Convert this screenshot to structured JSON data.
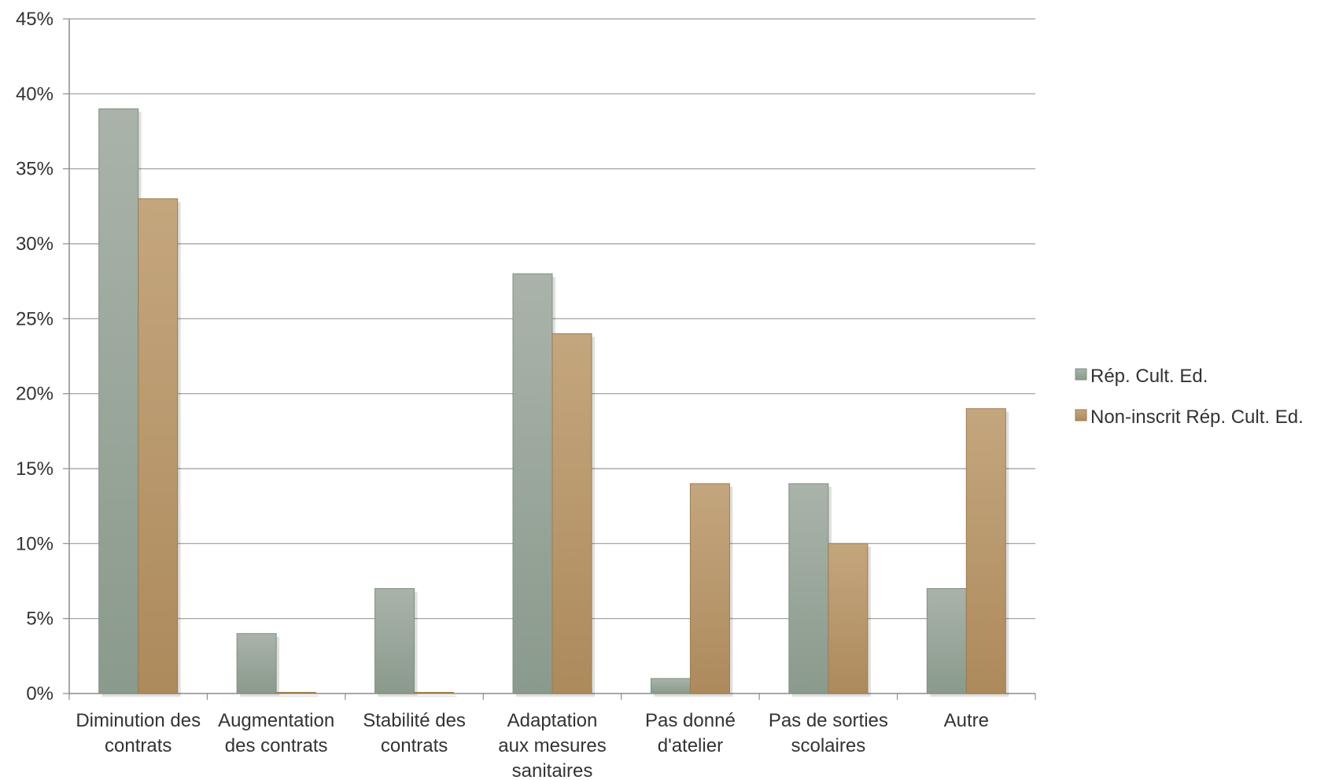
{
  "chart_data": {
    "type": "bar",
    "categories": [
      [
        "Diminution des",
        "contrats"
      ],
      [
        "Augmentation",
        "des contrats"
      ],
      [
        "Stabilité des",
        "contrats"
      ],
      [
        "Adaptation",
        "aux mesures",
        "sanitaires"
      ],
      [
        "Pas donné",
        "d'atelier"
      ],
      [
        "Pas de sorties",
        "scolaires"
      ],
      [
        "Autre"
      ]
    ],
    "series": [
      {
        "name": "Rép. Cult. Ed.",
        "values": [
          39,
          4,
          7,
          28,
          1,
          14,
          7
        ]
      },
      {
        "name": "Non-inscrit Rép. Cult. Ed.",
        "values": [
          33,
          0,
          0,
          24,
          14,
          10,
          19
        ]
      }
    ],
    "y_ticks": [
      "0%",
      "5%",
      "10%",
      "15%",
      "20%",
      "25%",
      "30%",
      "35%",
      "40%",
      "45%"
    ],
    "ylim": [
      0,
      45
    ],
    "grid": true,
    "legend_position": "right",
    "colors": {
      "series_1_light": "#aab3aa",
      "series_1_dark": "#8a9a8c",
      "series_2_light": "#c4a67e",
      "series_2_dark": "#ad8a5c",
      "grid": "#9a9a9a",
      "axis": "#8c8c8c"
    }
  }
}
